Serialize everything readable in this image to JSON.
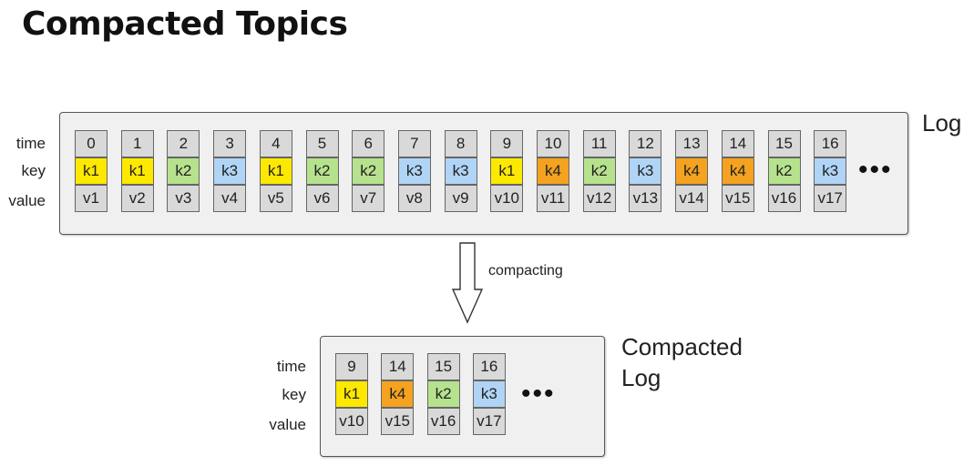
{
  "title": "Compacted Topics",
  "row_labels": {
    "time": "time",
    "key": "key",
    "value": "value"
  },
  "log": {
    "label": "Log",
    "records": [
      {
        "time": "0",
        "key": "k1",
        "value": "v1"
      },
      {
        "time": "1",
        "key": "k1",
        "value": "v2"
      },
      {
        "time": "2",
        "key": "k2",
        "value": "v3"
      },
      {
        "time": "3",
        "key": "k3",
        "value": "v4"
      },
      {
        "time": "4",
        "key": "k1",
        "value": "v5"
      },
      {
        "time": "5",
        "key": "k2",
        "value": "v6"
      },
      {
        "time": "6",
        "key": "k2",
        "value": "v7"
      },
      {
        "time": "7",
        "key": "k3",
        "value": "v8"
      },
      {
        "time": "8",
        "key": "k3",
        "value": "v9"
      },
      {
        "time": "9",
        "key": "k1",
        "value": "v10"
      },
      {
        "time": "10",
        "key": "k4",
        "value": "v11"
      },
      {
        "time": "11",
        "key": "k2",
        "value": "v12"
      },
      {
        "time": "12",
        "key": "k3",
        "value": "v13"
      },
      {
        "time": "13",
        "key": "k4",
        "value": "v14"
      },
      {
        "time": "14",
        "key": "k4",
        "value": "v15"
      },
      {
        "time": "15",
        "key": "k2",
        "value": "v16"
      },
      {
        "time": "16",
        "key": "k3",
        "value": "v17"
      }
    ],
    "continuation": "•••"
  },
  "arrow_label": "compacting",
  "compacted_log": {
    "label_line1": "Compacted",
    "label_line2": "Log",
    "records": [
      {
        "time": "9",
        "key": "k1",
        "value": "v10"
      },
      {
        "time": "14",
        "key": "k4",
        "value": "v15"
      },
      {
        "time": "15",
        "key": "k2",
        "value": "v16"
      },
      {
        "time": "16",
        "key": "k3",
        "value": "v17"
      }
    ],
    "continuation": "•••"
  },
  "key_colors": {
    "k1": "#fde800",
    "k2": "#b6e28d",
    "k3": "#b0d4f5",
    "k4": "#f4a21f"
  },
  "cell_gray": "#d9d9d9"
}
